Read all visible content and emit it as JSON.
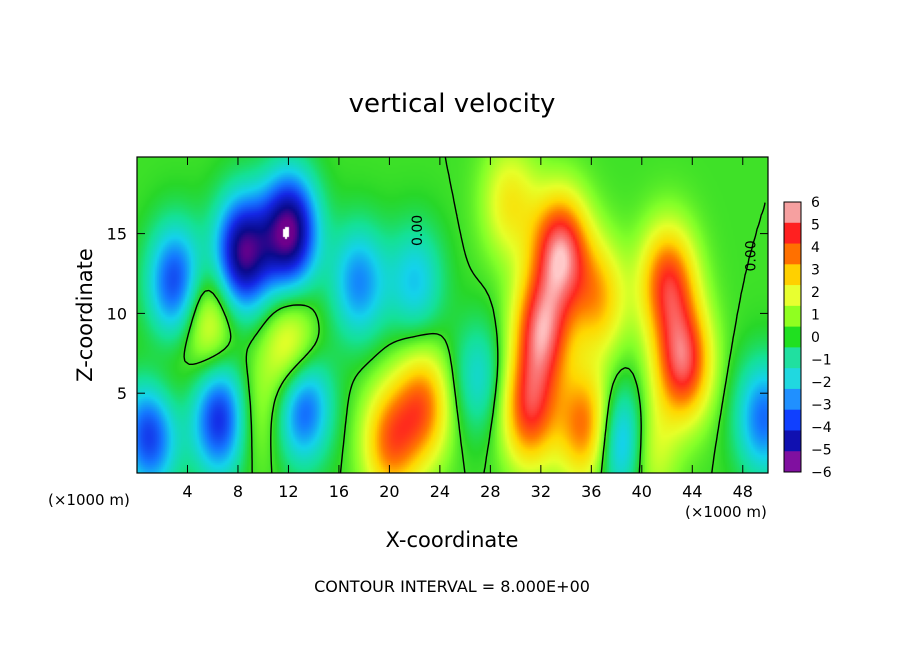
{
  "chart_data": {
    "type": "heatmap",
    "title": "vertical velocity",
    "xlabel": "X-coordinate",
    "ylabel": "Z-coordinate",
    "x_unit_left": "(×1000 m)",
    "x_unit_right": "(×1000 m)",
    "footer": "CONTOUR INTERVAL = 8.000E+00",
    "xlim": [
      0,
      50
    ],
    "ylim": [
      0,
      19.8
    ],
    "x_ticks": [
      4,
      8,
      12,
      16,
      20,
      24,
      28,
      32,
      36,
      40,
      44,
      48
    ],
    "x_tick_labels": [
      "4",
      "8",
      "12",
      "16",
      "20",
      "24",
      "28",
      "32",
      "36",
      "40",
      "44",
      "48"
    ],
    "y_ticks": [
      5,
      10,
      15
    ],
    "y_tick_labels": [
      "5",
      "10",
      "15"
    ],
    "contour_labels": [
      {
        "text": "0.00",
        "x": 22.6,
        "y": 15.2
      },
      {
        "text": "0.00",
        "x": 49.0,
        "y": 13.6
      }
    ],
    "colorbar": {
      "min": -6,
      "max": 6,
      "ticks": [
        6,
        5,
        4,
        3,
        2,
        1,
        0,
        -1,
        -2,
        -3,
        -4,
        -5,
        -6
      ],
      "tick_labels": [
        "6",
        "5",
        "4",
        "3",
        "2",
        "1",
        "0",
        "−1",
        "−2",
        "−3",
        "−4",
        "−5",
        "−6"
      ],
      "colors": [
        "#f6a0a0",
        "#ff2020",
        "#ff7000",
        "#ffd000",
        "#e8ff30",
        "#90ff20",
        "#20e020",
        "#20e0a0",
        "#20d8e0",
        "#2090ff",
        "#1040ff",
        "#1010b0",
        "#8010a0"
      ]
    },
    "features": [
      {
        "x": 5.5,
        "y": 9.6,
        "w": 0.33
      },
      {
        "x": 12.2,
        "y": 7.4,
        "w": 0.42
      },
      {
        "x": 1.5,
        "y": 4.5,
        "w": 0.24
      },
      {
        "x": 9.4,
        "y": 3.6,
        "w": 0.17
      },
      {
        "x": 22.6,
        "y": 4.3,
        "w": 0.5
      },
      {
        "x": 8.3,
        "y": 13.8,
        "w": -0.8
      },
      {
        "x": 12.0,
        "y": 15.2,
        "w": -0.85
      },
      {
        "x": 3.0,
        "y": 12.0,
        "w": -0.55
      },
      {
        "x": 1.0,
        "y": 2.8,
        "w": -0.7
      },
      {
        "x": 17.5,
        "y": 12.0,
        "w": -0.4
      },
      {
        "x": 6.5,
        "y": 3.5,
        "w": -0.6
      },
      {
        "x": 13.0,
        "y": 4.5,
        "w": -0.6
      },
      {
        "x": 27.0,
        "y": 6.0,
        "w": -0.25
      },
      {
        "x": 38.5,
        "y": 2.0,
        "w": -0.55
      },
      {
        "x": 22.0,
        "y": 12.0,
        "w": -0.3
      },
      {
        "x": 32.0,
        "y": 9.0,
        "w": 0.7
      },
      {
        "x": 33.5,
        "y": 14.0,
        "w": 0.75
      },
      {
        "x": 31.0,
        "y": 4.0,
        "w": 0.6
      },
      {
        "x": 35.5,
        "y": 3.0,
        "w": 0.55
      },
      {
        "x": 43.2,
        "y": 7.0,
        "w": 0.7
      },
      {
        "x": 42.0,
        "y": 12.0,
        "w": 0.6
      },
      {
        "x": 40.2,
        "y": 1.6,
        "w": 0.35
      },
      {
        "x": 20.0,
        "y": 2.0,
        "w": 0.5
      },
      {
        "x": 36.5,
        "y": 11.0,
        "w": 0.4
      },
      {
        "x": 29.5,
        "y": 17.0,
        "w": 0.3
      },
      {
        "x": 49.6,
        "y": 3.5,
        "w": -0.45
      }
    ]
  }
}
